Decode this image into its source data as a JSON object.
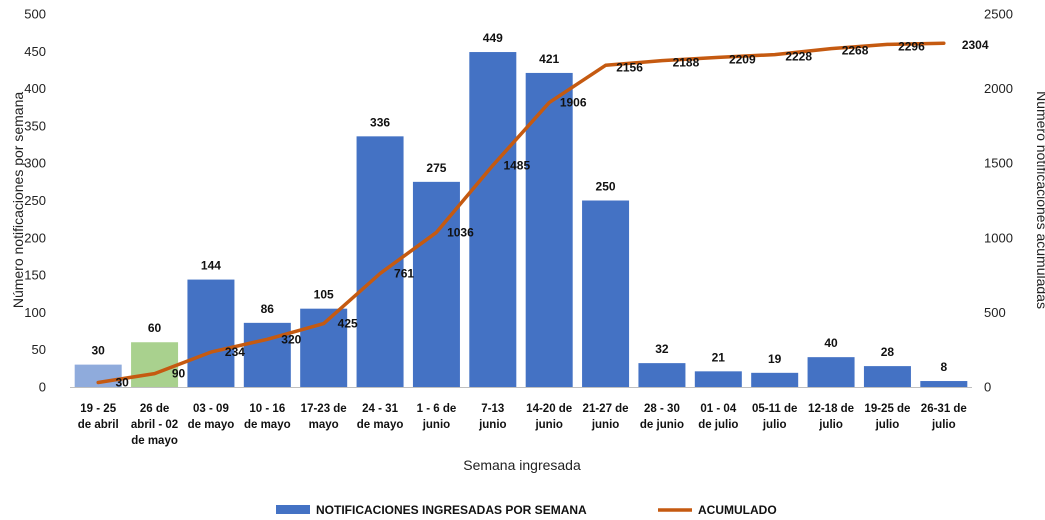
{
  "chart_data": {
    "type": "bar",
    "categories": [
      "19 - 25 de abril",
      "26 de abril - 02 de mayo",
      "03 - 09 de mayo",
      "10 - 16 de mayo",
      "17-23 de mayo",
      "24 - 31 de mayo",
      "1 - 6 de junio",
      "7-13 junio",
      "14-20 de junio",
      "21-27 de junio",
      "28 - 30 de junio",
      "01 - 04 de julio",
      "05-11 de julio",
      "12-18 de julio",
      "19-25 de julio",
      "26-31 de julio"
    ],
    "category_lines": [
      [
        "19 - 25",
        "de abril"
      ],
      [
        "26 de",
        "abril - 02",
        "de mayo"
      ],
      [
        "03 - 09",
        "de mayo"
      ],
      [
        "10 - 16",
        "de mayo"
      ],
      [
        "17-23 de",
        "mayo"
      ],
      [
        "24 - 31",
        "de mayo"
      ],
      [
        "1 - 6 de",
        "junio"
      ],
      [
        "7-13",
        "junio"
      ],
      [
        "14-20 de",
        "junio"
      ],
      [
        "21-27 de",
        "junio"
      ],
      [
        "28 - 30",
        "de junio"
      ],
      [
        "01 - 04",
        "de julio"
      ],
      [
        "05-11 de",
        "julio"
      ],
      [
        "12-18 de",
        "julio"
      ],
      [
        "19-25 de",
        "julio"
      ],
      [
        "26-31 de",
        "julio"
      ]
    ],
    "series": [
      {
        "name": "NOTIFICACIONES INGRESADAS POR SEMANA",
        "type": "bar",
        "axis": "left",
        "values": [
          30,
          60,
          144,
          86,
          105,
          336,
          275,
          449,
          421,
          250,
          32,
          21,
          19,
          40,
          28,
          8
        ],
        "color": "#4472c4",
        "special_colors": {
          "0": "#8fabdc",
          "1": "#a9d18e"
        }
      },
      {
        "name": "ACUMULADO",
        "type": "line",
        "axis": "right",
        "values": [
          30,
          90,
          234,
          320,
          425,
          761,
          1036,
          1485,
          1906,
          2156,
          2188,
          2209,
          2228,
          2268,
          2296,
          2304
        ],
        "color": "#c55a11"
      }
    ],
    "xlabel": "Semana ingresada",
    "ylabel": "Número notificaciones por semana",
    "y2label": "Número notificaciones acumuladas",
    "ylim": [
      0,
      500
    ],
    "y2lim": [
      0,
      2500
    ],
    "yticks": [
      0,
      50,
      100,
      150,
      200,
      250,
      300,
      350,
      400,
      450,
      500
    ],
    "y2ticks": [
      0,
      500,
      1000,
      1500,
      2000,
      2500
    ],
    "grid": false,
    "legend": "bottom-center"
  }
}
